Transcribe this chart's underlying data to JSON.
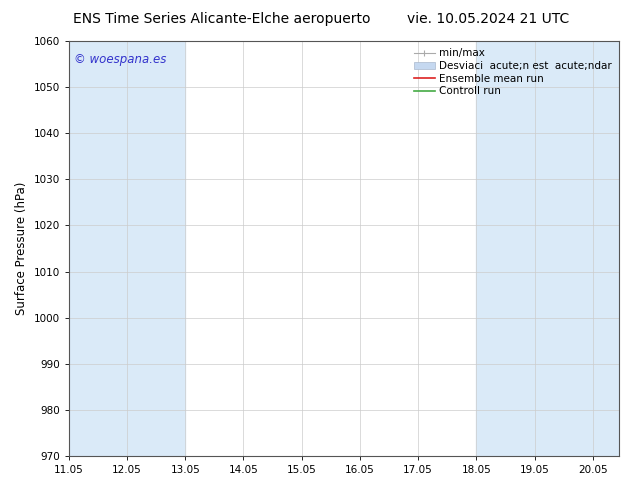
{
  "title_left": "ENS Time Series Alicante-Elche aeropuerto",
  "title_right": "vie. 10.05.2024 21 UTC",
  "ylabel": "Surface Pressure (hPa)",
  "ylim": [
    970,
    1060
  ],
  "yticks": [
    970,
    980,
    990,
    1000,
    1010,
    1020,
    1030,
    1040,
    1050,
    1060
  ],
  "xtick_labels": [
    "11.05",
    "12.05",
    "13.05",
    "14.05",
    "15.05",
    "16.05",
    "17.05",
    "18.05",
    "19.05",
    "20.05"
  ],
  "watermark": "© woespana.es",
  "watermark_color": "#3333cc",
  "bg_color": "#ffffff",
  "plot_bg_color": "#ffffff",
  "shaded_bands": [
    {
      "x_start": 11.05,
      "x_end": 13.05
    },
    {
      "x_start": 18.05,
      "x_end": 20.5
    }
  ],
  "shaded_color": "#daeaf8",
  "x_min": 11.05,
  "x_max": 20.5,
  "title_fontsize": 10,
  "tick_fontsize": 7.5,
  "ylabel_fontsize": 8.5,
  "legend_fontsize": 7.5
}
